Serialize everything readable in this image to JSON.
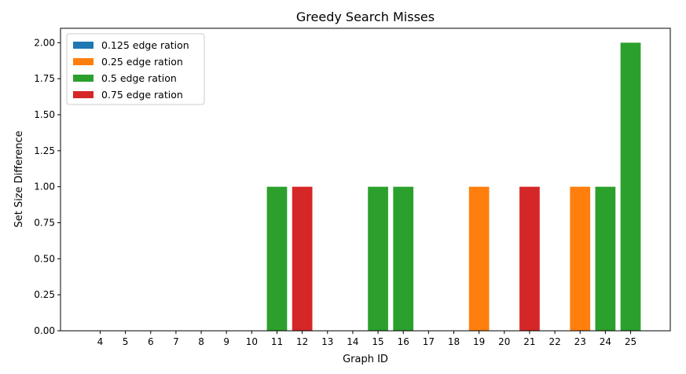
{
  "chart_data": {
    "type": "bar",
    "title": "Greedy Search Misses",
    "xlabel": "Graph ID",
    "ylabel": "Set Size Difference",
    "categories": [
      "4",
      "5",
      "6",
      "7",
      "8",
      "9",
      "10",
      "11",
      "12",
      "13",
      "14",
      "15",
      "16",
      "17",
      "18",
      "19",
      "20",
      "21",
      "22",
      "23",
      "24",
      "25"
    ],
    "ylim": [
      0,
      2.1
    ],
    "yticks": [
      "0.00",
      "0.25",
      "0.50",
      "0.75",
      "1.00",
      "1.25",
      "1.50",
      "1.75",
      "2.00"
    ],
    "legend_position": "top-left",
    "series": [
      {
        "name": "0.125 edge ration",
        "color": "#1f77b4",
        "values": [
          0,
          0,
          0,
          0,
          0,
          0,
          0,
          0,
          0,
          0,
          0,
          0,
          0,
          0,
          0,
          0,
          0,
          0,
          0,
          0,
          0,
          0
        ]
      },
      {
        "name": "0.25 edge ration",
        "color": "#ff7f0e",
        "values": [
          0,
          0,
          0,
          0,
          0,
          0,
          0,
          0,
          0,
          0,
          0,
          0,
          0,
          0,
          0,
          1,
          0,
          0,
          0,
          1,
          0,
          0
        ]
      },
      {
        "name": "0.5 edge ration",
        "color": "#2ca02c",
        "values": [
          0,
          0,
          0,
          0,
          0,
          0,
          0,
          1,
          0,
          0,
          0,
          1,
          1,
          0,
          0,
          0,
          0,
          0,
          0,
          0,
          1,
          2
        ]
      },
      {
        "name": "0.75 edge ration",
        "color": "#d62728",
        "values": [
          0,
          0,
          0,
          0,
          0,
          0,
          0,
          0,
          1,
          0,
          0,
          0,
          0,
          0,
          0,
          0,
          0,
          1,
          0,
          0,
          0,
          0
        ]
      }
    ]
  }
}
